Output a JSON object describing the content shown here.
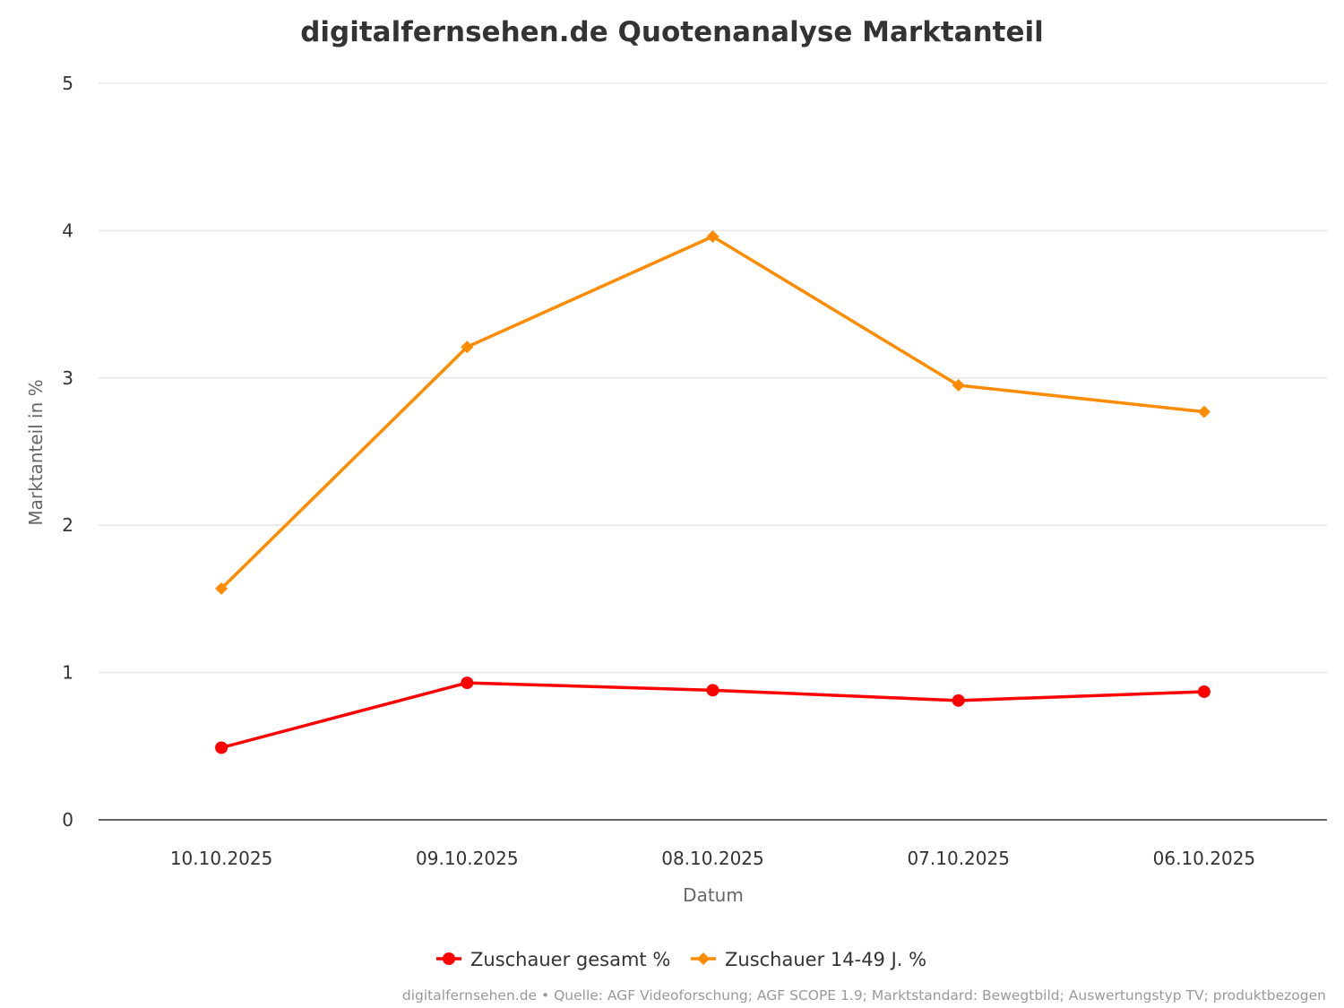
{
  "chart_data": {
    "type": "line",
    "title": "digitalfernsehen.de Quotenanalyse Marktanteil",
    "xlabel": "Datum",
    "ylabel": "Marktanteil in %",
    "categories": [
      "10.10.2025",
      "09.10.2025",
      "08.10.2025",
      "07.10.2025",
      "06.10.2025"
    ],
    "ylim": [
      0,
      5
    ],
    "yticks": [
      0,
      1,
      2,
      3,
      4,
      5
    ],
    "grid": true,
    "legend_position": "bottom-center",
    "series": [
      {
        "name": "Zuschauer gesamt %",
        "color": "#ff0000",
        "marker": "circle",
        "values": [
          0.49,
          0.93,
          0.88,
          0.81,
          0.87
        ]
      },
      {
        "name": "Zuschauer 14-49 J. %",
        "color": "#ff8c00",
        "marker": "diamond",
        "values": [
          1.57,
          3.21,
          3.96,
          2.95,
          2.77
        ]
      }
    ],
    "credits": "digitalfernsehen.de • Quelle: AGF Videoforschung; AGF SCOPE 1.9; Marktstandard: Bewegtbild; Auswertungstyp TV; produktbezogen"
  }
}
